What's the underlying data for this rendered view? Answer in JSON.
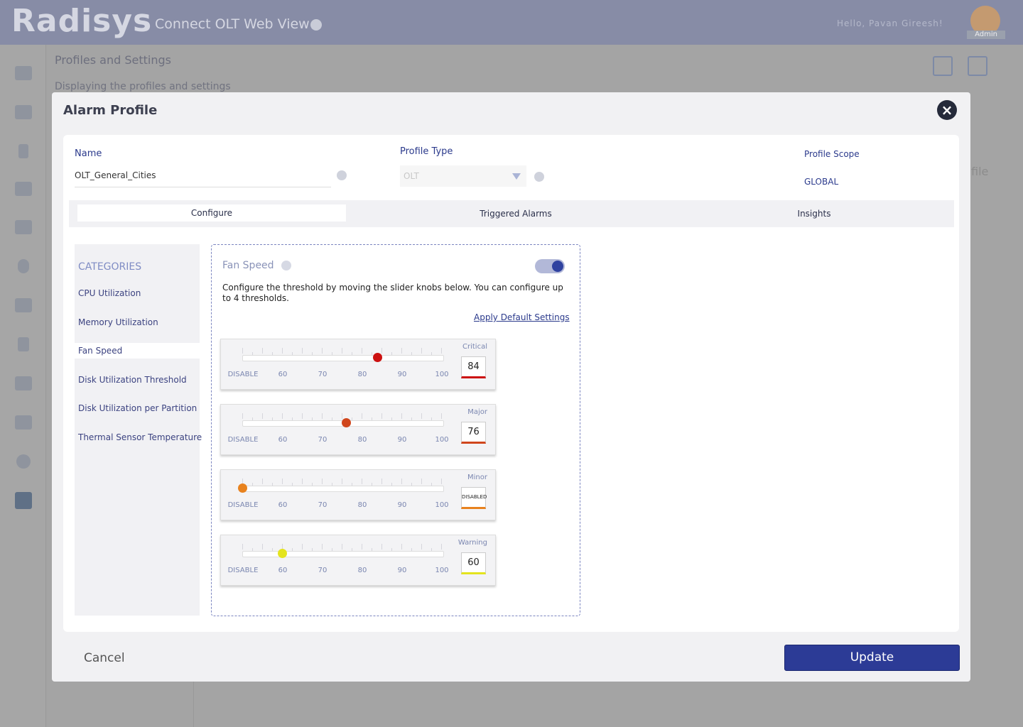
{
  "header": {
    "logo": "Radisys",
    "app_title": "Connect OLT Web View",
    "greeting": "Hello, Pavan Gireesh!",
    "role": "Admin"
  },
  "page": {
    "title": "Profiles and Settings",
    "subtitle": "Displaying the profiles and settings",
    "obscured_text": "file"
  },
  "modal": {
    "title": "Alarm Profile",
    "fields": {
      "name_label": "Name",
      "name_value": "OLT_General_Cities",
      "type_label": "Profile Type",
      "type_value": "OLT",
      "scope_label": "Profile Scope",
      "scope_value": "GLOBAL"
    },
    "tabs": [
      "Configure",
      "Triggered Alarms",
      "Insights"
    ],
    "categories": {
      "heading": "CATEGORIES",
      "items": [
        "CPU Utilization",
        "Memory Utilization",
        "Fan Speed",
        "Disk Utilization Threshold",
        "Disk Utilization per Partition",
        "Thermal Sensor Temperature"
      ],
      "selected": 2
    },
    "panel": {
      "title": "Fan Speed",
      "enabled": true,
      "description": "Configure the threshold by moving the slider knobs below. You can configure up to 4 thresholds.",
      "link": "Apply Default Settings",
      "scale": [
        "DISABLE",
        60,
        70,
        80,
        90,
        100
      ],
      "sliders": [
        {
          "label": "Critical",
          "value": 84,
          "color": "#cc1111"
        },
        {
          "label": "Major",
          "value": 76,
          "color": "#d0461c"
        },
        {
          "label": "Minor",
          "value": "DISABLED",
          "color": "#e8821e"
        },
        {
          "label": "Warning",
          "value": 60,
          "color": "#e4e41e"
        }
      ]
    },
    "buttons": {
      "cancel": "Cancel",
      "update": "Update"
    }
  }
}
